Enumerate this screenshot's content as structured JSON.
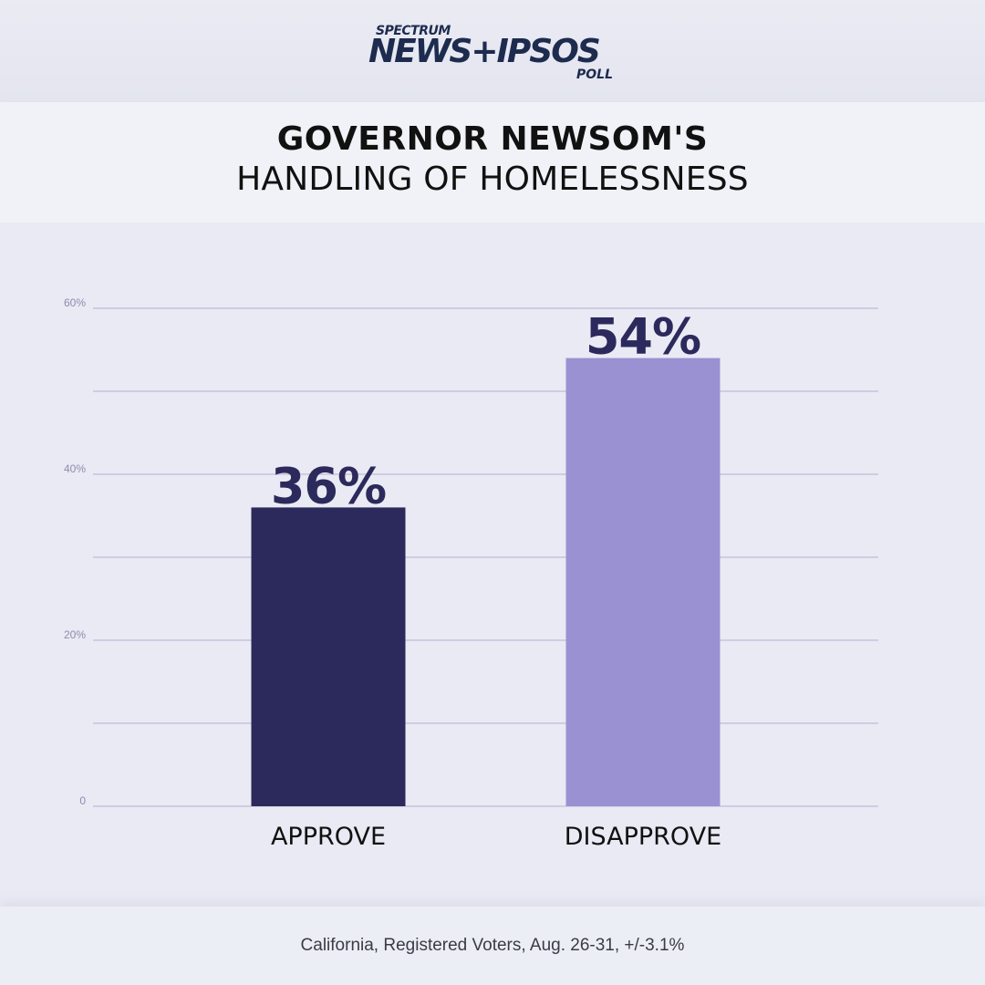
{
  "logo": {
    "spectrum": "SPECTRUM",
    "main": "NEWS+IPSOS",
    "poll": "POLL"
  },
  "title": {
    "line1": "GOVERNOR NEWSOM'S",
    "line2": "HANDLING OF HOMELESSNESS"
  },
  "footer": "California, Registered Voters, Aug. 26-31, +/-3.1%",
  "colors": {
    "approve": "#2c295c",
    "disapprove": "#9a91d3",
    "gridline": "#b3b0d6",
    "tick_label": "#8e8cb0",
    "value_label": "#2c295c"
  },
  "chart_data": {
    "type": "bar",
    "categories": [
      "APPROVE",
      "DISAPPROVE"
    ],
    "values": [
      36,
      54
    ],
    "value_labels": [
      "36%",
      "54%"
    ],
    "ylim": [
      0,
      60
    ],
    "yticks": [
      0,
      20,
      40,
      60
    ],
    "ytick_labels": [
      "0",
      "20%",
      "40%",
      "60%"
    ],
    "gridlines": [
      0,
      10,
      20,
      30,
      40,
      50,
      60
    ],
    "grid": true,
    "legend": "none"
  }
}
